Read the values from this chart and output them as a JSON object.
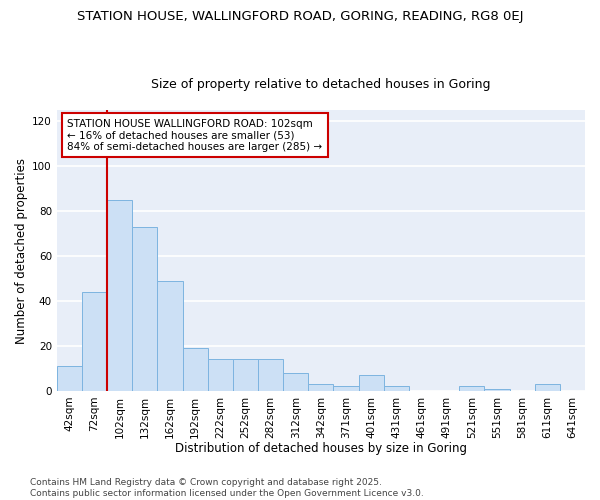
{
  "title1": "STATION HOUSE, WALLINGFORD ROAD, GORING, READING, RG8 0EJ",
  "title2": "Size of property relative to detached houses in Goring",
  "xlabel": "Distribution of detached houses by size in Goring",
  "ylabel": "Number of detached properties",
  "categories": [
    "42sqm",
    "72sqm",
    "102sqm",
    "132sqm",
    "162sqm",
    "192sqm",
    "222sqm",
    "252sqm",
    "282sqm",
    "312sqm",
    "342sqm",
    "371sqm",
    "401sqm",
    "431sqm",
    "461sqm",
    "491sqm",
    "521sqm",
    "551sqm",
    "581sqm",
    "611sqm",
    "641sqm"
  ],
  "values": [
    11,
    44,
    85,
    73,
    49,
    19,
    14,
    14,
    14,
    8,
    3,
    2,
    7,
    2,
    0,
    0,
    2,
    1,
    0,
    3,
    0
  ],
  "bar_color": "#cce0f5",
  "bar_edge_color": "#7db4e0",
  "vline_color": "#cc0000",
  "annotation_text": "STATION HOUSE WALLINGFORD ROAD: 102sqm\n← 16% of detached houses are smaller (53)\n84% of semi-detached houses are larger (285) →",
  "annotation_box_color": "white",
  "annotation_box_edge": "#cc0000",
  "ylim": [
    0,
    125
  ],
  "yticks": [
    0,
    20,
    40,
    60,
    80,
    100,
    120
  ],
  "bg_color": "#ffffff",
  "plot_bg_color": "#e8eef8",
  "grid_color": "#ffffff",
  "footnote": "Contains HM Land Registry data © Crown copyright and database right 2025.\nContains public sector information licensed under the Open Government Licence v3.0.",
  "title_fontsize": 9.5,
  "subtitle_fontsize": 9,
  "label_fontsize": 8.5,
  "tick_fontsize": 7.5,
  "annotation_fontsize": 7.5,
  "footnote_fontsize": 6.5
}
